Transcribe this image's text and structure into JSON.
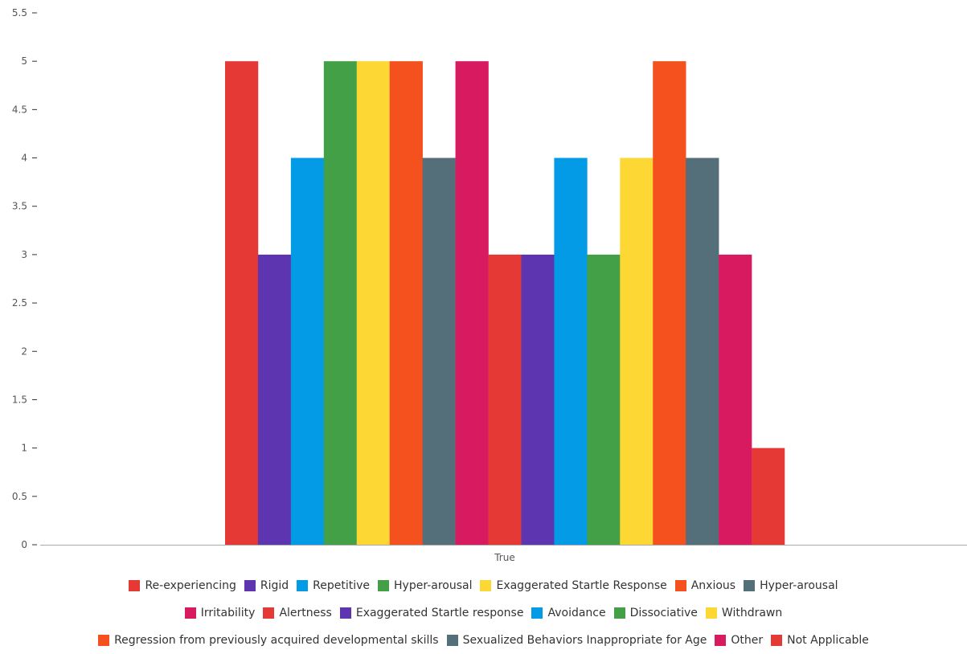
{
  "chart_data": {
    "type": "bar",
    "categories": [
      "True"
    ],
    "series": [
      {
        "name": "Re-experiencing",
        "values": [
          5
        ],
        "color": "#e53935"
      },
      {
        "name": "Rigid",
        "values": [
          3
        ],
        "color": "#5e35b1"
      },
      {
        "name": "Repetitive",
        "values": [
          4
        ],
        "color": "#039be5"
      },
      {
        "name": "Hyper-arousal",
        "values": [
          5
        ],
        "color": "#43a047"
      },
      {
        "name": "Exaggerated Startle Response",
        "values": [
          5
        ],
        "color": "#fdd835"
      },
      {
        "name": "Anxious",
        "values": [
          5
        ],
        "color": "#f4511e"
      },
      {
        "name": "Hyper-arousal",
        "values": [
          4
        ],
        "color": "#546e7a"
      },
      {
        "name": "Irritability",
        "values": [
          5
        ],
        "color": "#d81b60"
      },
      {
        "name": "Alertness",
        "values": [
          3
        ],
        "color": "#e53935"
      },
      {
        "name": "Exaggerated Startle response",
        "values": [
          3
        ],
        "color": "#5e35b1"
      },
      {
        "name": "Avoidance",
        "values": [
          4
        ],
        "color": "#039be5"
      },
      {
        "name": "Dissociative",
        "values": [
          3
        ],
        "color": "#43a047"
      },
      {
        "name": "Withdrawn",
        "values": [
          4
        ],
        "color": "#fdd835"
      },
      {
        "name": "Regression from previously acquired developmental skills",
        "values": [
          5
        ],
        "color": "#f4511e"
      },
      {
        "name": "Sexualized Behaviors Inappropriate for Age",
        "values": [
          4
        ],
        "color": "#546e7a"
      },
      {
        "name": "Other",
        "values": [
          3
        ],
        "color": "#d81b60"
      },
      {
        "name": "Not Applicable",
        "values": [
          1
        ],
        "color": "#e53935"
      }
    ],
    "ylim": [
      0,
      5.5
    ],
    "yticks": [
      "0",
      "0.5",
      "1",
      "1.5",
      "2",
      "2.5",
      "3",
      "3.5",
      "4",
      "4.5",
      "5",
      "5.5"
    ],
    "grid": false,
    "legend_position": "bottom",
    "legend_rows": [
      [
        "Re-experiencing",
        "Rigid",
        "Repetitive",
        "Hyper-arousal",
        "Exaggerated Startle Response",
        "Anxious",
        "Hyper-arousal"
      ],
      [
        "Irritability",
        "Alertness",
        "Exaggerated Startle response",
        "Avoidance",
        "Dissociative",
        "Withdrawn"
      ],
      [
        "Regression from previously acquired developmental skills",
        "Sexualized Behaviors Inappropriate for Age",
        "Other",
        "Not Applicable"
      ]
    ]
  }
}
